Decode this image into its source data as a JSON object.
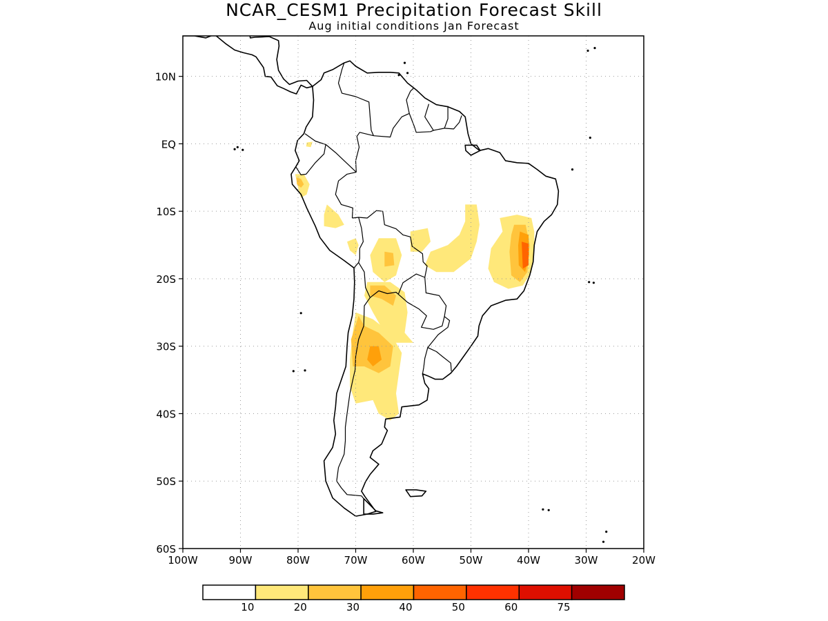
{
  "title": "NCAR_CESM1 Precipitation Forecast Skill",
  "subtitle": "Aug initial conditions  Jan Forecast",
  "map": {
    "region": "South America",
    "lon_range": [
      -100,
      -20
    ],
    "lat_range": [
      -60,
      16
    ],
    "grid": "dotted",
    "lat_labels": [
      {
        "value": 10,
        "label": "10N"
      },
      {
        "value": 0,
        "label": "EQ"
      },
      {
        "value": -10,
        "label": "10S"
      },
      {
        "value": -20,
        "label": "20S"
      },
      {
        "value": -30,
        "label": "30S"
      },
      {
        "value": -40,
        "label": "40S"
      },
      {
        "value": -50,
        "label": "50S"
      },
      {
        "value": -60,
        "label": "60S"
      }
    ],
    "lon_labels": [
      {
        "value": -100,
        "label": "100W"
      },
      {
        "value": -90,
        "label": "90W"
      },
      {
        "value": -80,
        "label": "80W"
      },
      {
        "value": -70,
        "label": "70W"
      },
      {
        "value": -60,
        "label": "60W"
      },
      {
        "value": -50,
        "label": "50W"
      },
      {
        "value": -40,
        "label": "40W"
      },
      {
        "value": -30,
        "label": "30W"
      },
      {
        "value": -20,
        "label": "20W"
      }
    ]
  },
  "colorbar": {
    "colors": [
      "#ffffff",
      "#ffe87a",
      "#ffc43c",
      "#ffa00a",
      "#ff6400",
      "#ff3200",
      "#de0f00",
      "#a00000"
    ],
    "labels": [
      "10",
      "20",
      "30",
      "40",
      "50",
      "60",
      "75"
    ]
  },
  "skill_regions": [
    {
      "name": "northeast-brazil",
      "level": 1,
      "coords": [
        [
          -45,
          -11
        ],
        [
          -42,
          -10.5
        ],
        [
          -39.5,
          -11
        ],
        [
          -39,
          -13
        ],
        [
          -39,
          -16
        ],
        [
          -39.5,
          -19
        ],
        [
          -41,
          -21
        ],
        [
          -43.5,
          -21.5
        ],
        [
          -46,
          -20.5
        ],
        [
          -47,
          -18.5
        ],
        [
          -46.5,
          -15.5
        ],
        [
          -44.5,
          -13
        ]
      ]
    },
    {
      "name": "northeast-brazil",
      "level": 2,
      "coords": [
        [
          -42.5,
          -12
        ],
        [
          -40.5,
          -12
        ],
        [
          -39.8,
          -15
        ],
        [
          -40.2,
          -19
        ],
        [
          -41.5,
          -20.5
        ],
        [
          -43,
          -19.5
        ],
        [
          -43.3,
          -16
        ],
        [
          -43,
          -13.5
        ]
      ]
    },
    {
      "name": "northeast-brazil",
      "level": 3,
      "coords": [
        [
          -41.5,
          -13
        ],
        [
          -40,
          -13.5
        ],
        [
          -39.9,
          -16.5
        ],
        [
          -40.6,
          -19
        ],
        [
          -41.7,
          -18
        ],
        [
          -41.8,
          -15
        ]
      ]
    },
    {
      "name": "northeast-brazil",
      "level": 4,
      "coords": [
        [
          -41.2,
          -14.5
        ],
        [
          -40,
          -14.8
        ],
        [
          -40,
          -18
        ],
        [
          -41,
          -18.5
        ]
      ]
    },
    {
      "name": "central-brazil",
      "level": 1,
      "coords": [
        [
          -51,
          -9
        ],
        [
          -49,
          -9
        ],
        [
          -48.5,
          -12
        ],
        [
          -49,
          -14.5
        ],
        [
          -50,
          -17
        ],
        [
          -53,
          -19
        ],
        [
          -56,
          -19
        ],
        [
          -58,
          -18
        ],
        [
          -57,
          -16
        ],
        [
          -54,
          -15
        ],
        [
          -52,
          -13.5
        ],
        [
          -51,
          -11.5
        ]
      ]
    },
    {
      "name": "bolivia",
      "level": 1,
      "coords": [
        [
          -66,
          -14
        ],
        [
          -63,
          -14
        ],
        [
          -62,
          -16.5
        ],
        [
          -63,
          -19.5
        ],
        [
          -65,
          -20.5
        ],
        [
          -67,
          -19
        ],
        [
          -67.5,
          -16.5
        ]
      ]
    },
    {
      "name": "bolivia-east",
      "level": 1,
      "coords": [
        [
          -60.5,
          -13
        ],
        [
          -57.5,
          -12.5
        ],
        [
          -57,
          -14.5
        ],
        [
          -58.5,
          -16
        ],
        [
          -60.5,
          -16
        ]
      ]
    },
    {
      "name": "bolivia",
      "level": 2,
      "coords": [
        [
          -65,
          -16
        ],
        [
          -63.5,
          -16.2
        ],
        [
          -63.3,
          -18
        ],
        [
          -65,
          -18.2
        ]
      ]
    },
    {
      "name": "chaco",
      "level": 1,
      "coords": [
        [
          -68,
          -20.5
        ],
        [
          -64,
          -20.5
        ],
        [
          -61.5,
          -22
        ],
        [
          -61,
          -25
        ],
        [
          -61.5,
          -28
        ],
        [
          -60,
          -29.5
        ],
        [
          -63,
          -29.5
        ],
        [
          -65,
          -28
        ],
        [
          -67,
          -25
        ],
        [
          -68.5,
          -22.5
        ]
      ]
    },
    {
      "name": "chaco",
      "level": 2,
      "coords": [
        [
          -67.5,
          -21
        ],
        [
          -65,
          -21
        ],
        [
          -63,
          -22.5
        ],
        [
          -63.5,
          -24
        ],
        [
          -65.5,
          -23
        ],
        [
          -67.5,
          -22.5
        ]
      ]
    },
    {
      "name": "andes-central",
      "level": 1,
      "coords": [
        [
          -70,
          -25
        ],
        [
          -67,
          -26
        ],
        [
          -64,
          -28
        ],
        [
          -62,
          -31
        ],
        [
          -62.5,
          -34
        ],
        [
          -63,
          -37
        ],
        [
          -62.5,
          -40
        ],
        [
          -64,
          -41
        ],
        [
          -66,
          -40
        ],
        [
          -67,
          -38
        ],
        [
          -70,
          -38.5
        ],
        [
          -71,
          -36
        ],
        [
          -71,
          -32
        ],
        [
          -70.5,
          -28
        ]
      ]
    },
    {
      "name": "andes-central",
      "level": 2,
      "coords": [
        [
          -69.5,
          -25.5
        ],
        [
          -68.5,
          -27
        ],
        [
          -66,
          -28
        ],
        [
          -63.5,
          -30
        ],
        [
          -64,
          -33
        ],
        [
          -66,
          -34
        ],
        [
          -68.5,
          -33
        ],
        [
          -70.5,
          -33
        ],
        [
          -70.8,
          -29
        ]
      ]
    },
    {
      "name": "andes-central",
      "level": 3,
      "coords": [
        [
          -67.5,
          -30
        ],
        [
          -66,
          -30
        ],
        [
          -65.5,
          -32
        ],
        [
          -67,
          -33
        ],
        [
          -68,
          -32
        ]
      ]
    },
    {
      "name": "peru-coast",
      "level": 1,
      "coords": [
        [
          -80.5,
          -4.5
        ],
        [
          -79,
          -4.5
        ],
        [
          -78,
          -6
        ],
        [
          -78.5,
          -7.5
        ],
        [
          -79.5,
          -8
        ],
        [
          -80,
          -6.5
        ]
      ]
    },
    {
      "name": "peru-coast",
      "level": 2,
      "coords": [
        [
          -80.3,
          -5
        ],
        [
          -79.5,
          -5.2
        ],
        [
          -79,
          -6
        ],
        [
          -79.5,
          -6.5
        ],
        [
          -80.2,
          -6
        ]
      ]
    },
    {
      "name": "peru-central",
      "level": 1,
      "coords": [
        [
          -75,
          -9
        ],
        [
          -73,
          -10.5
        ],
        [
          -72,
          -12
        ],
        [
          -73.5,
          -12.5
        ],
        [
          -75.5,
          -12.2
        ],
        [
          -75.5,
          -10.5
        ]
      ]
    },
    {
      "name": "peru-south",
      "level": 1,
      "coords": [
        [
          -71.5,
          -14.5
        ],
        [
          -70,
          -14
        ],
        [
          -69.5,
          -15
        ],
        [
          -70,
          -16.5
        ],
        [
          -71,
          -15.8
        ]
      ]
    },
    {
      "name": "ecuador",
      "level": 1,
      "coords": [
        [
          -78.5,
          0.2
        ],
        [
          -77.5,
          0.3
        ],
        [
          -77.8,
          -0.5
        ],
        [
          -78.6,
          -0.4
        ]
      ]
    }
  ]
}
